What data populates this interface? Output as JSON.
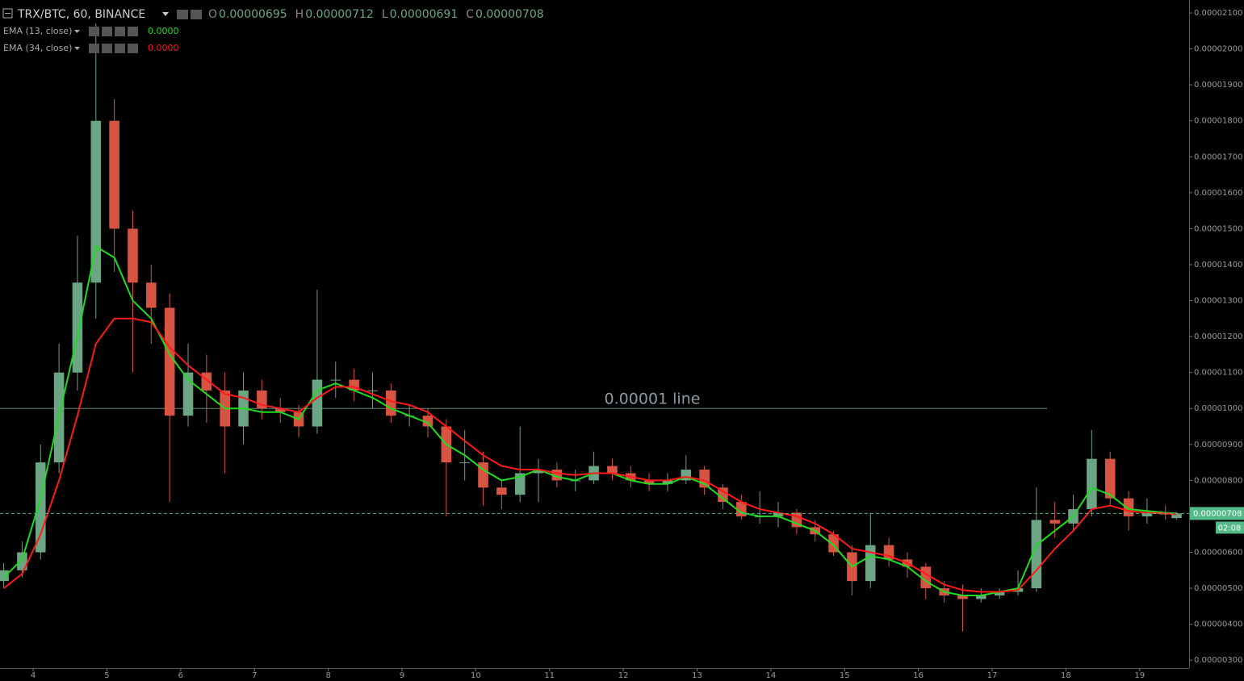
{
  "header": {
    "symbol": "TRX/BTC, 60, BINANCE",
    "ohlc": [
      {
        "key": "O",
        "value": "0.00000695"
      },
      {
        "key": "H",
        "value": "0.00000712"
      },
      {
        "key": "L",
        "value": "0.00000691"
      },
      {
        "key": "C",
        "value": "0.00000708"
      }
    ]
  },
  "chart_data": {
    "type": "candlestick",
    "x": [
      3.6,
      3.85,
      4.1,
      4.35,
      4.6,
      4.85,
      5.1,
      5.35,
      5.6,
      5.85,
      6.1,
      6.35,
      6.6,
      6.85,
      7.1,
      7.35,
      7.6,
      7.85,
      8.1,
      8.35,
      8.6,
      8.85,
      9.1,
      9.35,
      9.6,
      9.85,
      10.1,
      10.35,
      10.6,
      10.85,
      11.1,
      11.35,
      11.6,
      11.85,
      12.1,
      12.35,
      12.6,
      12.85,
      13.1,
      13.35,
      13.6,
      13.85,
      14.1,
      14.35,
      14.6,
      14.85,
      15.1,
      15.35,
      15.6,
      15.85,
      16.1,
      16.35,
      16.6,
      16.85,
      17.1,
      17.35,
      17.6,
      17.85,
      18.1,
      18.35,
      18.6,
      18.85,
      19.1,
      19.35,
      19.5
    ],
    "open": [
      5.2e-06,
      5.5e-06,
      6e-06,
      8.5e-06,
      1.1e-05,
      1.35e-05,
      1.8e-05,
      1.5e-05,
      1.35e-05,
      1.28e-05,
      9.8e-06,
      1.1e-05,
      1.05e-05,
      9.5e-06,
      1.05e-05,
      1e-05,
      9.9e-06,
      9.5e-06,
      1.08e-05,
      1.08e-05,
      1.05e-05,
      1.05e-05,
      9.8e-06,
      9.8e-06,
      9.5e-06,
      8.5e-06,
      8.5e-06,
      7.8e-06,
      7.6e-06,
      8.2e-06,
      8.3e-06,
      8e-06,
      8e-06,
      8.4e-06,
      8.2e-06,
      8e-06,
      7.9e-06,
      8e-06,
      8.3e-06,
      7.8e-06,
      7.4e-06,
      7e-06,
      7e-06,
      7.1e-06,
      6.7e-06,
      6.5e-06,
      6e-06,
      5.2e-06,
      6.2e-06,
      5.8e-06,
      5.6e-06,
      5e-06,
      4.8e-06,
      4.7e-06,
      4.8e-06,
      4.9e-06,
      5e-06,
      6.9e-06,
      6.8e-06,
      7.2e-06,
      8.6e-06,
      7.5e-06,
      7e-06,
      7.1e-06,
      6.95e-06
    ],
    "high": [
      5.7e-06,
      6.3e-06,
      9e-06,
      1.18e-05,
      1.48e-05,
      2.07e-05,
      1.86e-05,
      1.55e-05,
      1.4e-05,
      1.32e-05,
      1.18e-05,
      1.15e-05,
      1.1e-05,
      1.1e-05,
      1.08e-05,
      1.03e-05,
      1.01e-05,
      1.33e-05,
      1.13e-05,
      1.11e-05,
      1.1e-05,
      1.07e-05,
      1.01e-05,
      1e-05,
      9.7e-06,
      9.4e-06,
      8.8e-06,
      8e-06,
      9.5e-06,
      8.6e-06,
      8.5e-06,
      8.3e-06,
      8.8e-06,
      8.6e-06,
      8.4e-06,
      8.2e-06,
      8.2e-06,
      8.7e-06,
      8.4e-06,
      7.9e-06,
      7.6e-06,
      7.7e-06,
      7.4e-06,
      7.2e-06,
      6.9e-06,
      6.6e-06,
      6.2e-06,
      7.1e-06,
      6.4e-06,
      6e-06,
      5.7e-06,
      5.2e-06,
      5.1e-06,
      5e-06,
      5e-06,
      5.5e-06,
      7.8e-06,
      7.4e-06,
      7.6e-06,
      9.4e-06,
      8.8e-06,
      7.7e-06,
      7.5e-06,
      7.3e-06,
      7.12e-06
    ],
    "low": [
      5e-06,
      5.3e-06,
      5.8e-06,
      8.2e-06,
      1.05e-05,
      1.25e-05,
      1.38e-05,
      1.1e-05,
      1.18e-05,
      7.4e-06,
      9.5e-06,
      9.6e-06,
      8.2e-06,
      9e-06,
      9.7e-06,
      9.6e-06,
      9.2e-06,
      9.3e-06,
      1.03e-05,
      1.02e-05,
      1e-05,
      9.6e-06,
      9.5e-06,
      9.2e-06,
      7e-06,
      8e-06,
      7.3e-06,
      7.2e-06,
      7.4e-06,
      7.4e-06,
      7.8e-06,
      7.7e-06,
      7.9e-06,
      8e-06,
      7.8e-06,
      7.7e-06,
      7.7e-06,
      7.9e-06,
      7.6e-06,
      7.2e-06,
      6.9e-06,
      6.8e-06,
      6.7e-06,
      6.5e-06,
      6.3e-06,
      5.9e-06,
      4.8e-06,
      5e-06,
      5.6e-06,
      5.3e-06,
      4.7e-06,
      4.6e-06,
      3.8e-06,
      4.6e-06,
      4.7e-06,
      4.8e-06,
      4.9e-06,
      6.4e-06,
      6.6e-06,
      7e-06,
      7.3e-06,
      6.6e-06,
      6.8e-06,
      6.9e-06,
      6.91e-06
    ],
    "close": [
      5.5e-06,
      6e-06,
      8.5e-06,
      1.1e-05,
      1.35e-05,
      1.8e-05,
      1.5e-05,
      1.35e-05,
      1.28e-05,
      9.8e-06,
      1.1e-05,
      1.05e-05,
      9.5e-06,
      1.05e-05,
      1e-05,
      9.9e-06,
      9.5e-06,
      1.08e-05,
      1.08e-05,
      1.05e-05,
      1.05e-05,
      9.8e-06,
      9.8e-06,
      9.5e-06,
      8.5e-06,
      8.5e-06,
      7.8e-06,
      7.6e-06,
      8.2e-06,
      8.3e-06,
      8e-06,
      8e-06,
      8.4e-06,
      8.2e-06,
      8e-06,
      7.9e-06,
      8e-06,
      8.3e-06,
      7.8e-06,
      7.4e-06,
      7e-06,
      7e-06,
      7.1e-06,
      6.7e-06,
      6.5e-06,
      6e-06,
      5.2e-06,
      6.2e-06,
      5.8e-06,
      5.6e-06,
      5e-06,
      4.8e-06,
      4.7e-06,
      4.8e-06,
      4.9e-06,
      5e-06,
      6.9e-06,
      6.8e-06,
      7.2e-06,
      8.6e-06,
      7.5e-06,
      7e-06,
      7.1e-06,
      7.05e-06,
      7.08e-06
    ],
    "up_color": "#6ba583",
    "down_color": "#d75442",
    "series": [
      {
        "name": "EMA (13, close)",
        "color": "#1fdc1f",
        "legend_value": "0.0000",
        "values": [
          5.3e-06,
          5.8e-06,
          7.5e-06,
          9.8e-06,
          1.2e-05,
          1.45e-05,
          1.42e-05,
          1.3e-05,
          1.25e-05,
          1.15e-05,
          1.08e-05,
          1.04e-05,
          1e-05,
          1e-05,
          9.9e-06,
          9.9e-06,
          9.7e-06,
          1.05e-05,
          1.07e-05,
          1.05e-05,
          1.03e-05,
          1e-05,
          9.8e-06,
          9.6e-06,
          9e-06,
          8.7e-06,
          8.3e-06,
          8e-06,
          8.1e-06,
          8.3e-06,
          8.1e-06,
          8e-06,
          8.2e-06,
          8.2e-06,
          8e-06,
          7.9e-06,
          7.9e-06,
          8.1e-06,
          7.9e-06,
          7.5e-06,
          7.1e-06,
          7e-06,
          7e-06,
          6.8e-06,
          6.6e-06,
          6.2e-06,
          5.6e-06,
          5.9e-06,
          5.8e-06,
          5.6e-06,
          5.2e-06,
          4.9e-06,
          4.8e-06,
          4.8e-06,
          4.9e-06,
          5e-06,
          6.2e-06,
          6.6e-06,
          7e-06,
          7.8e-06,
          7.6e-06,
          7.2e-06,
          7.15e-06,
          7.1e-06,
          7.08e-06
        ]
      },
      {
        "name": "EMA (34, close)",
        "color": "#ff1a1a",
        "legend_value": "0.0000",
        "values": [
          5e-06,
          5.4e-06,
          6.5e-06,
          8e-06,
          9.8e-06,
          1.18e-05,
          1.25e-05,
          1.25e-05,
          1.24e-05,
          1.17e-05,
          1.12e-05,
          1.08e-05,
          1.04e-05,
          1.03e-05,
          1.01e-05,
          1e-05,
          9.9e-06,
          1.03e-05,
          1.06e-05,
          1.06e-05,
          1.04e-05,
          1.02e-05,
          1.01e-05,
          9.9e-06,
          9.5e-06,
          9.1e-06,
          8.7e-06,
          8.4e-06,
          8.3e-06,
          8.3e-06,
          8.2e-06,
          8.15e-06,
          8.2e-06,
          8.2e-06,
          8.1e-06,
          8e-06,
          8e-06,
          8.1e-06,
          8e-06,
          7.7e-06,
          7.4e-06,
          7.2e-06,
          7.1e-06,
          7e-06,
          6.8e-06,
          6.5e-06,
          6.1e-06,
          6e-06,
          5.9e-06,
          5.7e-06,
          5.4e-06,
          5.1e-06,
          4.95e-06,
          4.9e-06,
          4.9e-06,
          4.95e-06,
          5.5e-06,
          6.1e-06,
          6.6e-06,
          7.2e-06,
          7.3e-06,
          7.15e-06,
          7.1e-06,
          7.08e-06,
          7.06e-06
        ]
      }
    ],
    "hline": {
      "value": 1e-05,
      "label": "0.00001 line",
      "color": "#5e8a76"
    },
    "price_label": "0.00000708",
    "countdown": "02:08",
    "price_color": "#53b987",
    "xlim": [
      3.55,
      19.67
    ],
    "xticks": [
      4,
      5,
      6,
      7,
      8,
      9,
      10,
      11,
      12,
      13,
      14,
      15,
      16,
      17,
      18,
      19
    ],
    "ylim": [
      2.78e-06,
      2.136e-05
    ],
    "yticks": [
      {
        "value": 3e-06,
        "label": "0.00000300"
      },
      {
        "value": 4e-06,
        "label": "0.00000400"
      },
      {
        "value": 5e-06,
        "label": "0.00000500"
      },
      {
        "value": 6e-06,
        "label": "0.00000600"
      },
      {
        "value": 7e-06,
        "label": "0.00000700"
      },
      {
        "value": 8e-06,
        "label": "0.00000800"
      },
      {
        "value": 9e-06,
        "label": "0.00000900"
      },
      {
        "value": 1e-05,
        "label": "0.00001000"
      },
      {
        "value": 1.1e-05,
        "label": "0.00001100"
      },
      {
        "value": 1.2e-05,
        "label": "0.00001200"
      },
      {
        "value": 1.3e-05,
        "label": "0.00001300"
      },
      {
        "value": 1.4e-05,
        "label": "0.00001400"
      },
      {
        "value": 1.5e-05,
        "label": "0.00001500"
      },
      {
        "value": 1.6e-05,
        "label": "0.00001600"
      },
      {
        "value": 1.7e-05,
        "label": "0.00001700"
      },
      {
        "value": 1.8e-05,
        "label": "0.00001800"
      },
      {
        "value": 1.9e-05,
        "label": "0.00001900"
      },
      {
        "value": 2e-05,
        "label": "0.00002000"
      },
      {
        "value": 2.1e-05,
        "label": "0.00002100"
      }
    ]
  }
}
